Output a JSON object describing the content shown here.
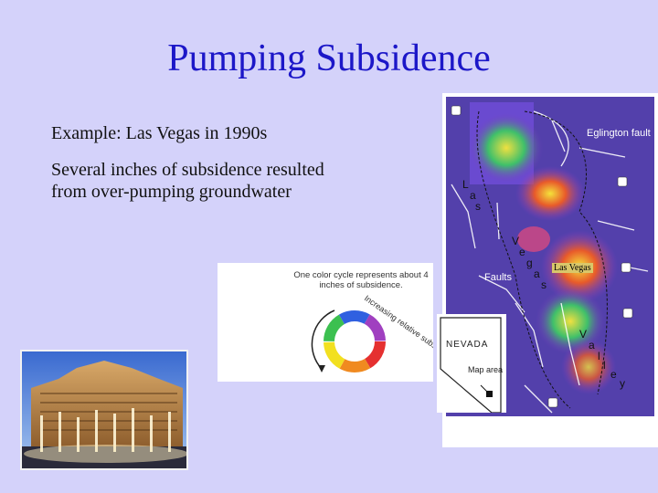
{
  "slide": {
    "title": "Pumping Subsidence",
    "paragraphs": [
      "Example: Las Vegas in 1990s",
      "Several inches of subsidence resulted from over-pumping groundwater"
    ]
  },
  "map": {
    "eglington_label": "Eglington fault",
    "faults_label": "Faults",
    "las_vegas_label": "Las Vegas",
    "valley_letters": [
      "L",
      "a",
      "s",
      "V",
      "e",
      "g",
      "a",
      "s",
      "V",
      "a",
      "l",
      "l",
      "e",
      "y"
    ]
  },
  "legend": {
    "description": "One color cycle represents about 4 inches of subsidence.",
    "arc_text": "Increasing relative subsidence"
  },
  "locator": {
    "state": "NEVADA",
    "map_area": "Map area"
  },
  "colors": {
    "background": "#d4d2fa",
    "title": "#1c17c8"
  }
}
